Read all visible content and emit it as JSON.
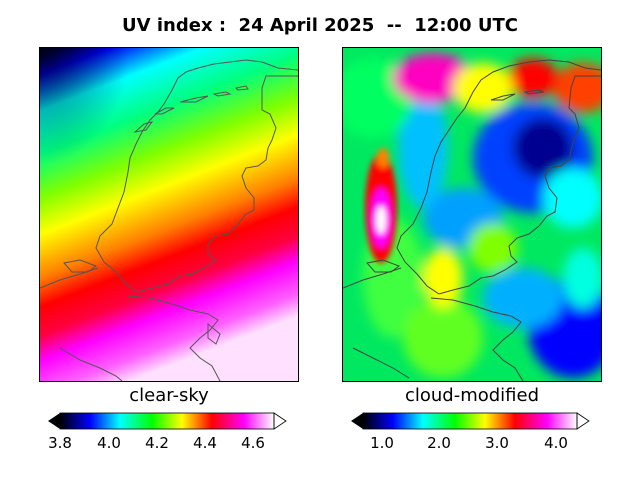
{
  "title": "UV index :  24 April 2025  --  12:00 UTC",
  "panels": [
    {
      "label": "clear-sky",
      "colorbar": {
        "ticks": [
          "3.8",
          "4.0",
          "4.2",
          "4.4",
          "4.6"
        ],
        "range": [
          3.77,
          4.73
        ]
      }
    },
    {
      "label": "cloud-modified",
      "colorbar": {
        "ticks": [
          "1.0",
          "2.0",
          "3.0",
          "4.0"
        ],
        "range": [
          0.55,
          4.6
        ]
      }
    }
  ],
  "colormap": [
    "#000000",
    "#0000ff",
    "#00ffff",
    "#00ff00",
    "#ffff00",
    "#ff0000",
    "#ff00ff",
    "#ffffff"
  ],
  "coastline_color": "#555555"
}
